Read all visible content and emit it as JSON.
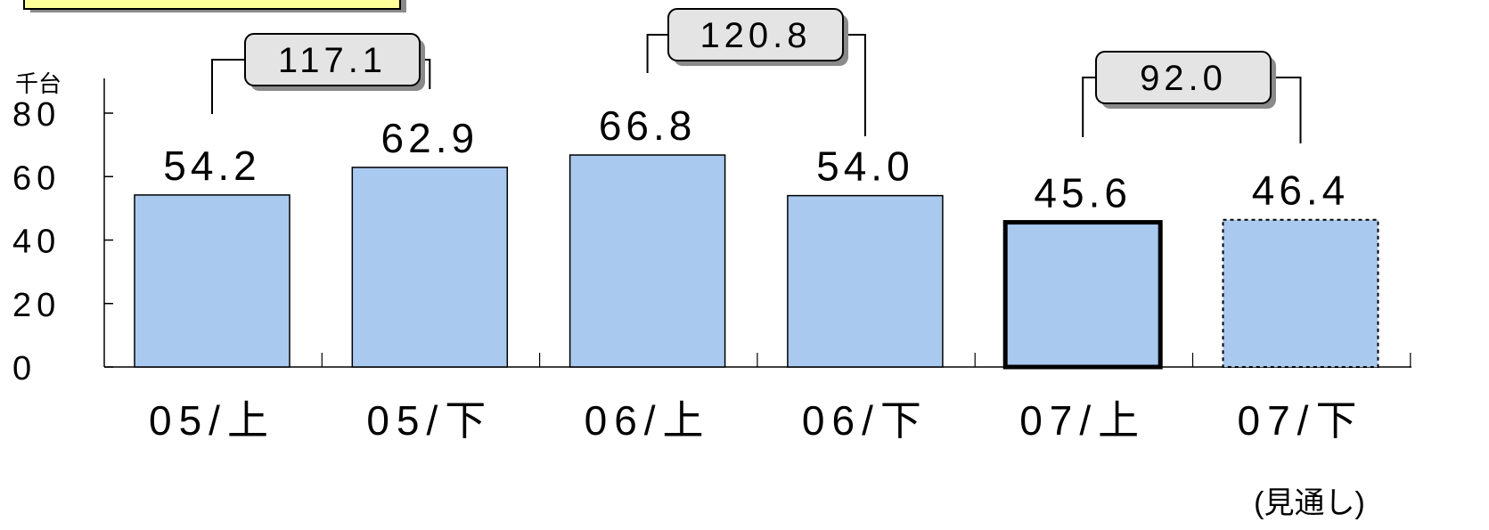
{
  "chart_data": {
    "type": "bar",
    "title": "",
    "unit_label": "千台",
    "categories": [
      "05/上",
      "05/下",
      "06/上",
      "06/下",
      "07/上",
      "07/下"
    ],
    "category_notes": [
      "",
      "",
      "",
      "",
      "",
      "(見通し)"
    ],
    "values": [
      54.2,
      62.9,
      66.8,
      54.0,
      45.6,
      46.4
    ],
    "value_labels": [
      "54.2",
      "62.9",
      "66.8",
      "54.0",
      "45.6",
      "46.4"
    ],
    "bar_styles": [
      "normal",
      "normal",
      "normal",
      "normal",
      "bold-outline",
      "dashed-outline"
    ],
    "ylim": [
      0,
      80
    ],
    "yticks": [
      "0",
      "20",
      "40",
      "60",
      "80"
    ],
    "grid": false,
    "legend": "none",
    "annual_totals": [
      {
        "label": "117.1",
        "from_index": 0,
        "to_index": 1
      },
      {
        "label": "120.8",
        "from_index": 2,
        "to_index": 3
      },
      {
        "label": "92.0",
        "from_index": 4,
        "to_index": 5
      }
    ],
    "colors": {
      "bar_fill": "#a9c9ef",
      "bar_stroke": "#000000",
      "callout_fill": "#e4e4e4",
      "callout_shadow": "#8a8a8a",
      "top_box_fill": "#ffff99"
    }
  }
}
